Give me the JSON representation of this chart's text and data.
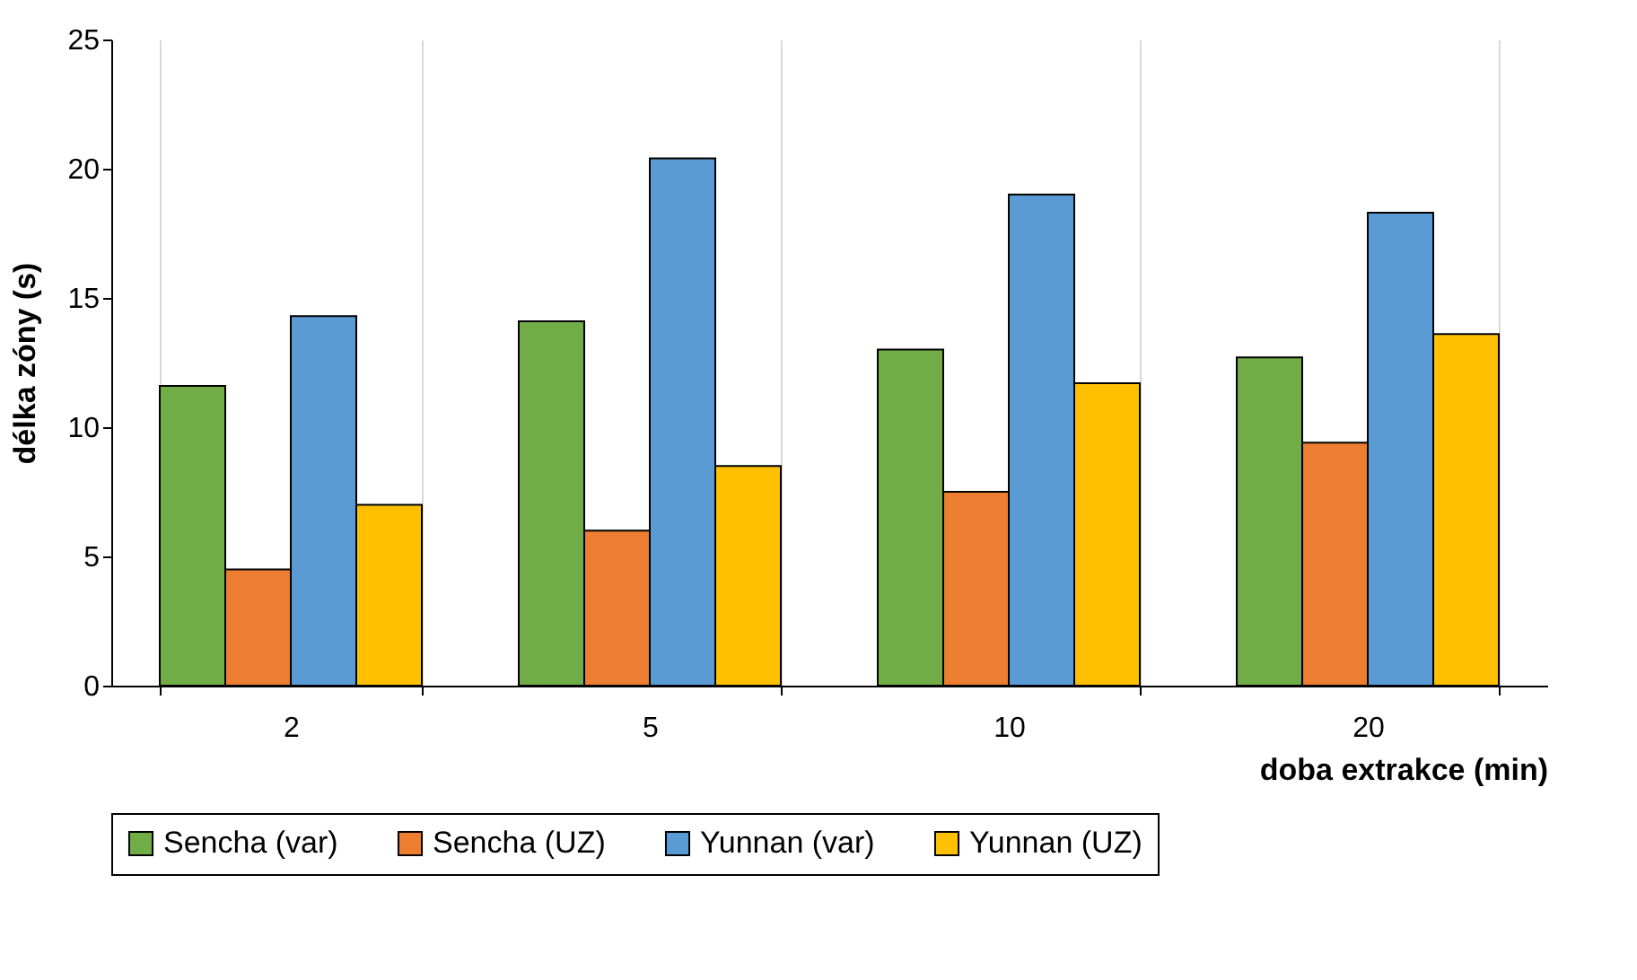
{
  "chart_data": {
    "type": "bar",
    "xlabel": "doba extrakce (min)",
    "ylabel": "délka zóny (s)",
    "categories": [
      "2",
      "5",
      "10",
      "20"
    ],
    "series": [
      {
        "name": "Sencha (var)",
        "color": "#70ad47",
        "values": [
          11.6,
          14.1,
          13.0,
          12.7
        ]
      },
      {
        "name": "Sencha (UZ)",
        "color": "#ed7d31",
        "values": [
          4.5,
          6.0,
          7.5,
          9.4
        ]
      },
      {
        "name": "Yunnan (var)",
        "color": "#5b9bd5",
        "values": [
          14.3,
          20.4,
          19.0,
          18.3
        ]
      },
      {
        "name": "Yunnan (UZ)",
        "color": "#ffc000",
        "values": [
          7.0,
          8.5,
          11.7,
          13.6
        ]
      }
    ],
    "ylim": [
      0,
      25
    ],
    "yticks": [
      0,
      5,
      10,
      15,
      20,
      25
    ],
    "grid": "x",
    "legend": "bottom"
  }
}
